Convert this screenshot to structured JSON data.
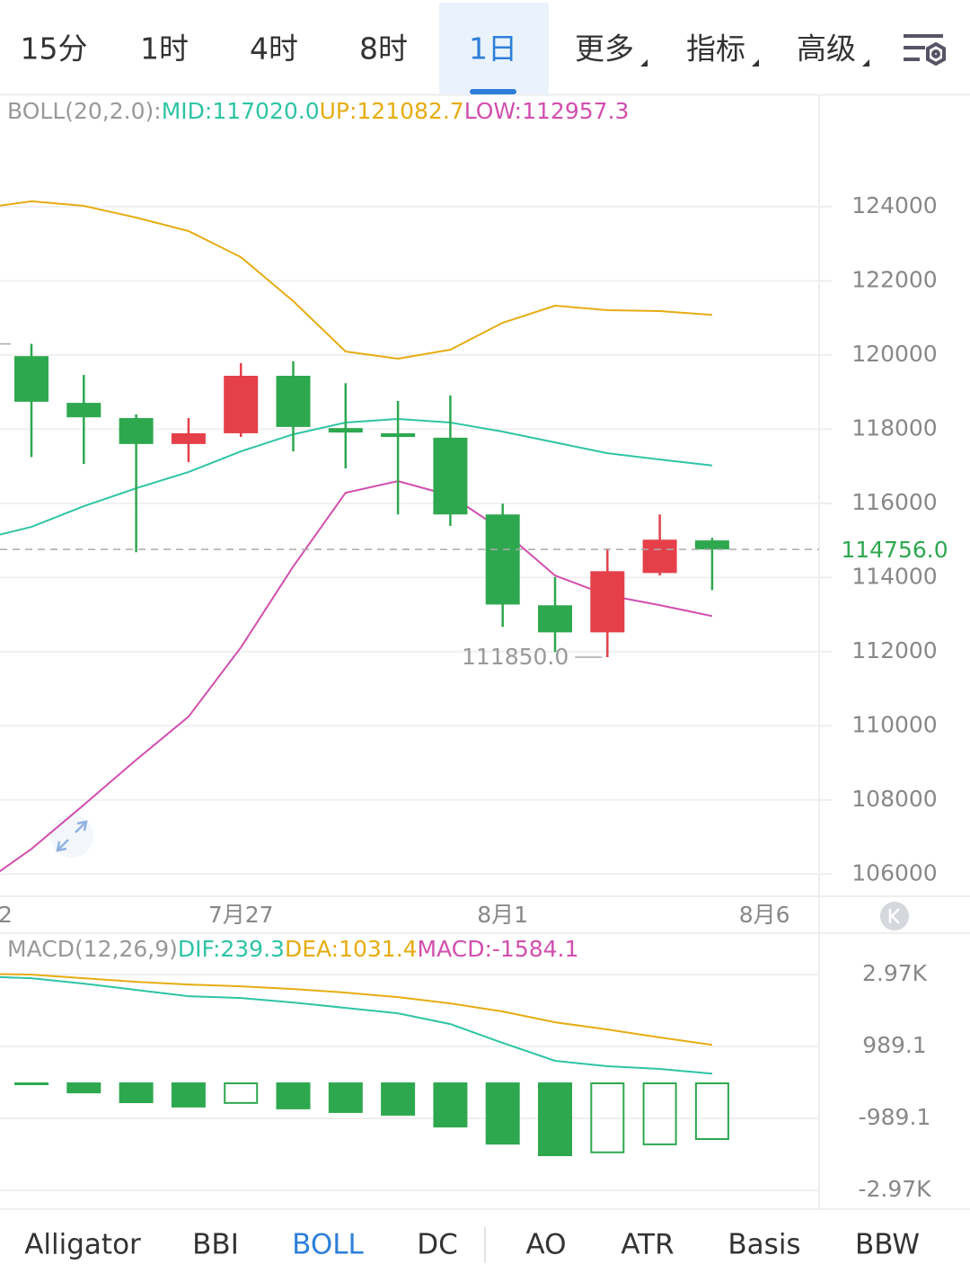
{
  "tabs": {
    "items": [
      "15分",
      "1时",
      "4时",
      "8时",
      "1日",
      "更多",
      "指标",
      "高级"
    ],
    "active_index": 4
  },
  "chart_data": [
    {
      "type": "candlestick",
      "header": "BOLL(20,2.0):",
      "categories": [
        "2",
        null,
        null,
        null,
        null,
        "7月27",
        null,
        null,
        null,
        null,
        "8月1",
        null,
        null,
        null,
        null,
        "8月6"
      ],
      "open": [
        null,
        119970,
        118710,
        118300,
        117600,
        117890,
        119440,
        118030,
        117890,
        117770,
        115700,
        113250,
        112520,
        114120,
        115000,
        null
      ],
      "high": [
        null,
        120300.1,
        119460,
        118400,
        118300,
        119780,
        119830,
        119240,
        118760,
        118910,
        115990,
        114010,
        114780,
        115700,
        115070,
        null
      ],
      "low": [
        null,
        117250,
        117060,
        114680,
        117110,
        117790,
        117400,
        116940,
        115700,
        115390,
        112670,
        111990,
        111850,
        114050,
        113660,
        null
      ],
      "close": [
        null,
        118740,
        118320,
        117600,
        117890,
        119440,
        118060,
        117910,
        117790,
        115700,
        113270,
        112520,
        114170,
        115020,
        114756,
        null
      ],
      "up_color": "#e5404a",
      "down_color": "#2ea84f",
      "series": [
        {
          "label": "MID:117020.0",
          "color": "#2ec4a5",
          "values": [
            115020,
            115363,
            115921,
            116406,
            116843,
            117401,
            117862,
            118178,
            118275,
            118178,
            117935,
            117644,
            117353,
            117183,
            117020,
            null
          ]
        },
        {
          "label": "UP:121082.7",
          "color": "#e6ac12",
          "values": [
            123950,
            124146,
            124024,
            123709,
            123345,
            122641,
            121453,
            120094,
            119900,
            120143,
            120870,
            121331,
            121210,
            121186,
            121082.7,
            null
          ]
        },
        {
          "label": "LOW:112957.3",
          "color": "#d24fae",
          "values": [
            105680,
            106678,
            107867,
            109080,
            110245,
            112113,
            114296,
            116285,
            116601,
            116212,
            115266,
            114053,
            113520,
            113253,
            112957.3,
            null
          ]
        }
      ],
      "ylim": [
        105400,
        127030
      ],
      "yticks": [
        106000,
        108000,
        110000,
        112000,
        114000,
        116000,
        118000,
        120000,
        122000,
        124000
      ],
      "current_price": {
        "value": 114756,
        "label": "114756.0"
      },
      "high_marker": {
        "value": 120300.1
      },
      "low_marker": {
        "value": 111850,
        "label": "111850.0"
      }
    },
    {
      "type": "macd",
      "header": "MACD(12,26,9)",
      "series": [
        {
          "label": "DIF:239.3",
          "color": "#2ec4a5",
          "values": [
            2918,
            2869,
            2720,
            2547,
            2374,
            2325,
            2201,
            2053,
            1904,
            1607,
            1088,
            594,
            445,
            371,
            239.3,
            null
          ]
        },
        {
          "label": "DEA:1031.4",
          "color": "#e6ac12",
          "values": [
            2992,
            2968,
            2869,
            2770,
            2696,
            2646,
            2572,
            2473,
            2349,
            2176,
            1954,
            1657,
            1459,
            1237,
            1031.4,
            null
          ]
        }
      ],
      "histogram": {
        "label": "MACD:-1584.1",
        "label_color": "#d24fae",
        "color": "#2ea84f",
        "values": [
          null,
          -75,
          -300,
          -570,
          -690,
          -590,
          -740,
          -840,
          -915,
          -1240,
          -1710,
          -2030,
          -1950,
          -1730,
          -1584.1,
          null
        ]
      },
      "ylim": [
        -3490,
        4060
      ],
      "yticks": [
        {
          "value": -2970,
          "label": "-2.97K"
        },
        -989.1,
        989.1,
        {
          "value": 2970,
          "label": "2.97K"
        }
      ]
    }
  ],
  "indicator_tabs": {
    "items": [
      "Alligator",
      "BBI",
      "BOLL",
      "DC",
      "AO",
      "ATR",
      "Basis",
      "BBW"
    ],
    "active_index": 2
  }
}
